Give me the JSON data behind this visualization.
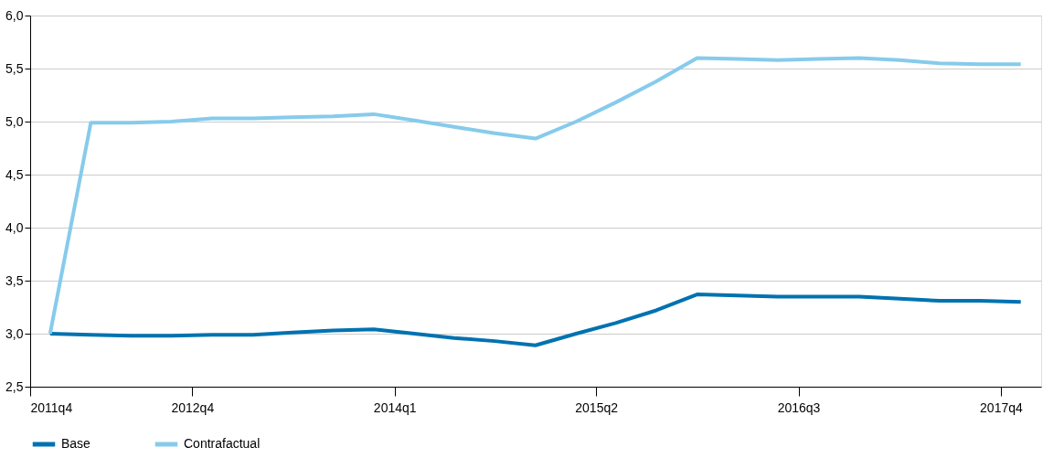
{
  "chart_data": {
    "type": "line",
    "x": [
      "2011-11-15",
      "2012-02-15",
      "2012-05-15",
      "2012-08-15",
      "2012-11-15",
      "2013-02-15",
      "2013-05-15",
      "2013-08-15",
      "2013-11-15",
      "2014-02-15",
      "2014-05-15",
      "2014-08-15",
      "2014-11-15",
      "2015-02-15",
      "2015-05-15",
      "2015-08-15",
      "2015-11-15",
      "2016-02-15",
      "2016-05-15",
      "2016-08-15",
      "2016-11-15",
      "2017-02-15",
      "2017-05-15",
      "2017-08-15",
      "2017-11-15"
    ],
    "series": [
      {
        "name": "Base",
        "color": "#0072b0",
        "values": [
          3.0,
          2.99,
          2.98,
          2.98,
          2.99,
          2.99,
          3.01,
          3.03,
          3.04,
          3.0,
          2.96,
          2.93,
          2.89,
          3.0,
          3.1,
          3.22,
          3.37,
          3.36,
          3.35,
          3.35,
          3.35,
          3.33,
          3.31,
          3.31,
          3.3
        ]
      },
      {
        "name": "Contrafactual",
        "color": "#86cbeb",
        "values": [
          3.0,
          4.99,
          4.99,
          5.0,
          5.03,
          5.03,
          5.04,
          5.05,
          5.07,
          5.01,
          4.95,
          4.89,
          4.84,
          5.0,
          5.18,
          5.38,
          5.6,
          5.59,
          5.58,
          5.59,
          5.6,
          5.58,
          5.55,
          5.54,
          5.54
        ]
      }
    ],
    "xlim": [
      "2011-10-01",
      "2017-12-31"
    ],
    "xticks": [
      {
        "value": "2011-10-01",
        "label": "2011q4"
      },
      {
        "value": "2012-10-01",
        "label": "2012q4"
      },
      {
        "value": "2014-01-01",
        "label": "2014q1"
      },
      {
        "value": "2015-04-01",
        "label": "2015q2"
      },
      {
        "value": "2016-07-01",
        "label": "2016q3"
      },
      {
        "value": "2017-10-01",
        "label": "2017q4"
      }
    ],
    "ylim": [
      2.5,
      6.0
    ],
    "yticks": [
      {
        "value": 2.5,
        "label": "2,5"
      },
      {
        "value": 3.0,
        "label": "3,0"
      },
      {
        "value": 3.5,
        "label": "3,5"
      },
      {
        "value": 4.0,
        "label": "4,0"
      },
      {
        "value": 4.5,
        "label": "4,5"
      },
      {
        "value": 5.0,
        "label": "5,0"
      },
      {
        "value": 5.5,
        "label": "5,5"
      },
      {
        "value": 6.0,
        "label": "6,0"
      }
    ],
    "grid": "y",
    "legend": "bottom",
    "marker": "none",
    "line_style": "solid"
  }
}
